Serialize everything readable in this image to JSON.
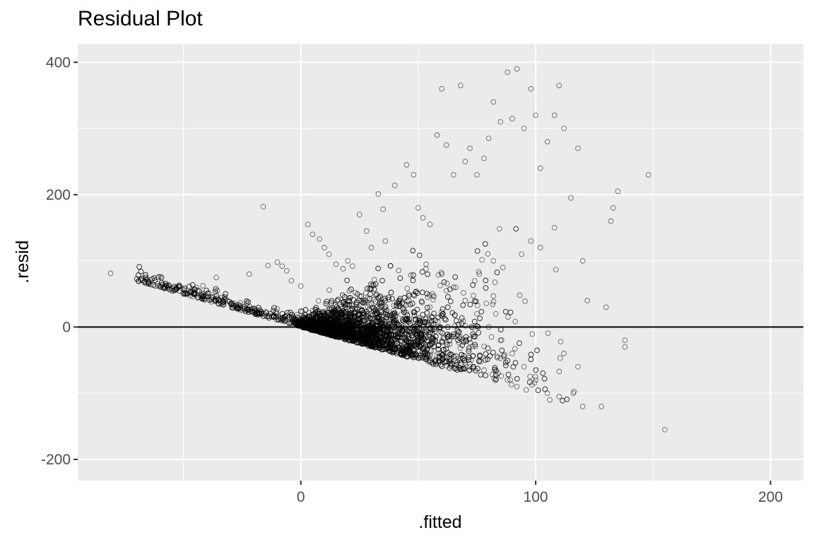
{
  "chart_data": {
    "type": "scatter",
    "title": "Residual Plot",
    "xlabel": ".fitted",
    "ylabel": ".resid",
    "xlim": [
      -95,
      214
    ],
    "ylim": [
      -232,
      428
    ],
    "x_ticks": [
      0,
      100,
      200
    ],
    "y_ticks": [
      -200,
      0,
      200,
      400
    ],
    "x_minor": [
      -50,
      50,
      150
    ],
    "y_minor": [
      -100,
      100,
      300
    ],
    "grid": true,
    "hline": 0,
    "panel_background": "#ebebeb",
    "grid_color": "#ffffff",
    "point_color": "#000000",
    "point_shape": "open-circle",
    "point_count_estimate": 6000,
    "x": [
      -81,
      -69,
      -66,
      -64,
      -62,
      -58,
      -55,
      -50,
      -46,
      -44,
      -41,
      -38,
      -36,
      -16,
      -22,
      -14,
      -10,
      -8,
      -6,
      -4,
      0,
      3,
      5,
      8,
      10,
      12,
      15,
      18,
      20,
      22,
      25,
      28,
      30,
      33,
      35,
      36,
      40,
      45,
      48,
      50,
      52,
      55,
      58,
      60,
      62,
      65,
      68,
      70,
      72,
      75,
      78,
      80,
      82,
      85,
      88,
      90,
      92,
      95,
      98,
      100,
      102,
      105,
      108,
      110,
      112,
      115,
      118,
      120,
      122,
      128,
      130,
      132,
      133,
      135,
      138,
      138,
      148,
      155,
      100,
      95,
      90,
      85,
      80,
      75,
      70,
      65,
      60,
      55,
      50,
      45,
      40,
      35,
      30,
      25,
      20,
      15,
      10,
      5,
      110,
      105,
      96,
      92,
      88,
      84,
      78,
      72,
      68,
      64,
      58,
      52,
      48,
      42,
      38,
      32,
      28,
      24,
      18,
      12,
      8,
      2,
      108,
      102,
      98,
      94,
      86,
      82,
      76,
      74,
      66,
      62,
      56,
      54,
      46,
      44,
      36,
      34,
      26,
      22,
      16,
      14,
      6,
      112,
      118,
      120,
      116,
      106
    ],
    "y": [
      81,
      69,
      66,
      64,
      62,
      58,
      55,
      50,
      46,
      44,
      41,
      38,
      75,
      182,
      80,
      93,
      98,
      92,
      85,
      70,
      62,
      155,
      140,
      133,
      120,
      110,
      95,
      88,
      100,
      92,
      170,
      145,
      120,
      201,
      178,
      130,
      214,
      245,
      230,
      180,
      165,
      155,
      290,
      360,
      275,
      230,
      365,
      250,
      270,
      230,
      255,
      285,
      340,
      310,
      385,
      315,
      390,
      300,
      360,
      320,
      240,
      280,
      320,
      365,
      300,
      195,
      270,
      100,
      40,
      -120,
      30,
      160,
      180,
      205,
      -20,
      -30,
      230,
      -155,
      -80,
      -60,
      -40,
      -20,
      0,
      20,
      40,
      60,
      80,
      30,
      10,
      -10,
      -15,
      -12,
      -8,
      -5,
      -3,
      -2,
      0,
      -1,
      -105,
      -100,
      -95,
      -90,
      -80,
      -70,
      -65,
      -60,
      -55,
      -50,
      -45,
      -40,
      -35,
      -30,
      -28,
      -25,
      -20,
      -18,
      -15,
      -10,
      -5,
      0,
      150,
      120,
      130,
      110,
      90,
      100,
      80,
      70,
      60,
      55,
      50,
      45,
      40,
      35,
      30,
      25,
      20,
      15,
      10,
      5,
      3,
      -40,
      -60,
      -120,
      -100,
      -110
    ]
  }
}
